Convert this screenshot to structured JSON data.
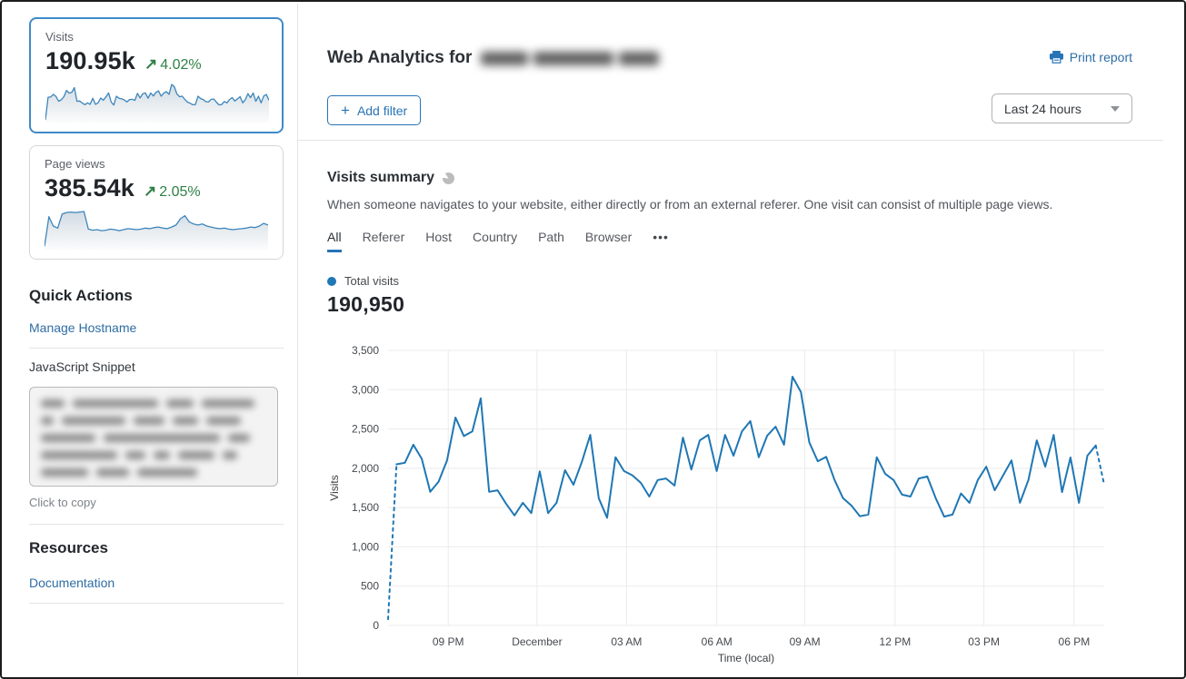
{
  "colors": {
    "accent_blue": "#2673b6",
    "chart_line": "#1f77b4",
    "positive_green": "#2e8047",
    "selected_card_border": "#3f8ac9"
  },
  "sidebar": {
    "cards": [
      {
        "label": "Visits",
        "value": "190.95k",
        "delta_arrow": "↗",
        "delta": "4.02%",
        "selected": true,
        "spark": [
          80,
          2050,
          2070,
          2300,
          2120,
          1700,
          1830,
          2100,
          2645,
          2410,
          2470,
          2890,
          1700,
          1720,
          1550,
          1400,
          1560,
          1430,
          1960,
          1430,
          1560,
          1975,
          1790,
          2080,
          2425,
          1620,
          1370,
          2140,
          1965,
          1910,
          1815,
          1640,
          1850,
          1870,
          1780,
          2390,
          1985,
          2355,
          2425,
          1965,
          2425,
          2160,
          2470,
          2600,
          2140,
          2415,
          2530,
          2300,
          3165,
          2970,
          2330,
          2090,
          2145,
          1850,
          1620,
          1525,
          1390,
          1410,
          2140,
          1930,
          1850,
          1665,
          1640,
          1870,
          1895,
          1620,
          1385,
          1410,
          1680,
          1560,
          1850,
          2020,
          1720,
          1910,
          2100,
          1560,
          1850,
          2355,
          2020,
          2425,
          1697,
          2137,
          1560,
          2160,
          2290,
          1790
        ]
      },
      {
        "label": "Page views",
        "value": "385.54k",
        "delta_arrow": "↗",
        "delta": "2.05%",
        "selected": false,
        "spark": [
          3,
          60,
          42,
          38,
          65,
          68,
          69,
          68,
          69,
          70,
          36,
          34,
          35,
          33,
          34,
          36,
          35,
          33,
          35,
          37,
          36,
          35,
          36,
          38,
          37,
          39,
          40,
          38,
          37,
          40,
          44,
          56,
          62,
          50,
          46,
          44,
          46,
          42,
          40,
          38,
          37,
          38,
          36,
          35,
          36,
          37,
          38,
          40,
          39,
          42,
          47,
          44
        ]
      }
    ],
    "quick_actions": {
      "title": "Quick Actions",
      "manage_hostname_label": "Manage Hostname",
      "snippet_label": "JavaScript Snippet",
      "snippet_hint": "Click to copy",
      "snippet_redacted": true
    },
    "resources": {
      "title": "Resources",
      "documentation_label": "Documentation"
    }
  },
  "header": {
    "title_prefix": "Web Analytics for",
    "domain_redacted": true,
    "print_report_label": "Print report",
    "add_filter": {
      "icon": "+",
      "label": "Add filter"
    },
    "time_range_value": "Last 24 hours"
  },
  "summary": {
    "title": "Visits summary",
    "description": "When someone navigates to your website, either directly or from an external referer. One visit can consist of multiple page views.",
    "tabs": [
      "All",
      "Referer",
      "Host",
      "Country",
      "Path",
      "Browser",
      "•••"
    ],
    "active_tab": "All",
    "legend_label": "Total visits",
    "total_value": "190,950"
  },
  "chart_data": {
    "type": "line",
    "title": "Total visits",
    "xlabel": "Time (local)",
    "ylabel": "Visits",
    "ylim": [
      0,
      3500
    ],
    "y_ticks": [
      "0",
      "500",
      "1,000",
      "1,500",
      "2,000",
      "2,500",
      "3,000",
      "3,500"
    ],
    "x_ticks": [
      {
        "label": "09 PM",
        "pos": 0.084
      },
      {
        "label": "December",
        "pos": 0.208
      },
      {
        "label": "03 AM",
        "pos": 0.333
      },
      {
        "label": "06 AM",
        "pos": 0.459
      },
      {
        "label": "09 AM",
        "pos": 0.582
      },
      {
        "label": "12 PM",
        "pos": 0.708
      },
      {
        "label": "03 PM",
        "pos": 0.832
      },
      {
        "label": "06 PM",
        "pos": 0.958
      }
    ],
    "grid": true,
    "series": [
      {
        "name": "Total visits",
        "color": "#1f77b4",
        "dashed_first_segment": true,
        "dashed_last_segment": true,
        "values": [
          80,
          2050,
          2070,
          2300,
          2120,
          1700,
          1830,
          2100,
          2645,
          2410,
          2470,
          2890,
          1700,
          1720,
          1550,
          1400,
          1560,
          1430,
          1960,
          1430,
          1560,
          1975,
          1790,
          2080,
          2425,
          1620,
          1370,
          2140,
          1965,
          1910,
          1815,
          1640,
          1850,
          1870,
          1780,
          2390,
          1985,
          2355,
          2425,
          1965,
          2425,
          2160,
          2470,
          2600,
          2140,
          2415,
          2530,
          2300,
          3165,
          2970,
          2330,
          2090,
          2145,
          1850,
          1620,
          1525,
          1390,
          1410,
          2140,
          1930,
          1850,
          1665,
          1640,
          1870,
          1895,
          1620,
          1385,
          1410,
          1680,
          1560,
          1850,
          2020,
          1720,
          1910,
          2100,
          1560,
          1850,
          2355,
          2020,
          2425,
          1697,
          2137,
          1560,
          2160,
          2290,
          1790
        ]
      }
    ]
  }
}
